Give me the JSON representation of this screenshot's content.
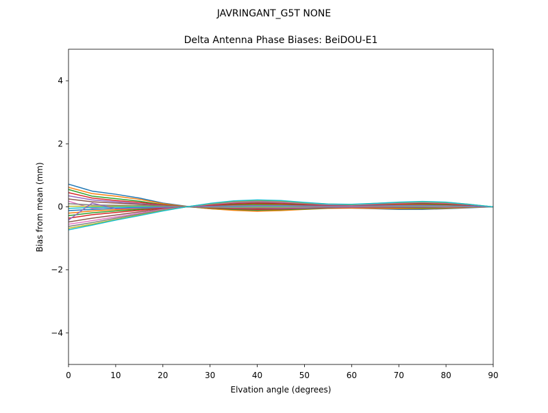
{
  "chart_data": {
    "type": "line",
    "suptitle": "JAVRINGANT_G5T  NONE",
    "title": "Delta Antenna Phase Biases: BeiDOU-E1",
    "xlabel": "Elvation angle (degrees)",
    "ylabel": "Bias from mean (mm)",
    "xlim": [
      0,
      90
    ],
    "ylim": [
      -5,
      5
    ],
    "xticks": [
      0,
      10,
      20,
      30,
      40,
      50,
      60,
      70,
      80,
      90
    ],
    "yticks": [
      -4,
      -2,
      0,
      2,
      4
    ],
    "ytick_labels": [
      "−4",
      "−2",
      "0",
      "2",
      "4"
    ],
    "grid": false,
    "legend": "none",
    "x": [
      0,
      5,
      10,
      15,
      20,
      25,
      30,
      35,
      40,
      45,
      50,
      55,
      60,
      65,
      70,
      75,
      80,
      85,
      90
    ],
    "colors": [
      "#1f77b4",
      "#ff7f0e",
      "#2ca02c",
      "#d62728",
      "#9467bd",
      "#8c564b",
      "#e377c2",
      "#7f7f7f",
      "#bcbd22",
      "#17becf"
    ],
    "series": [
      {
        "values": [
          0.72,
          0.5,
          0.4,
          0.28,
          0.12,
          0.02,
          -0.06,
          -0.1,
          -0.12,
          -0.1,
          -0.06,
          -0.04,
          -0.04,
          -0.06,
          -0.08,
          -0.08,
          -0.06,
          -0.03,
          0.0
        ]
      },
      {
        "values": [
          0.62,
          0.42,
          0.34,
          0.24,
          0.1,
          0.01,
          -0.06,
          -0.11,
          -0.14,
          -0.12,
          -0.08,
          -0.05,
          -0.04,
          -0.05,
          -0.06,
          -0.06,
          -0.05,
          -0.02,
          0.0
        ]
      },
      {
        "values": [
          0.55,
          0.34,
          0.26,
          0.18,
          0.07,
          0.0,
          -0.04,
          -0.08,
          -0.1,
          -0.09,
          -0.07,
          -0.04,
          -0.02,
          -0.02,
          -0.03,
          -0.04,
          -0.03,
          -0.01,
          0.0
        ]
      },
      {
        "values": [
          0.45,
          0.28,
          0.2,
          0.14,
          0.06,
          0.0,
          -0.03,
          -0.06,
          -0.08,
          -0.07,
          -0.05,
          -0.03,
          -0.02,
          -0.02,
          -0.02,
          -0.02,
          -0.02,
          -0.01,
          0.0
        ]
      },
      {
        "values": [
          0.35,
          0.22,
          0.16,
          0.1,
          0.04,
          0.0,
          -0.02,
          -0.04,
          -0.05,
          -0.05,
          -0.04,
          -0.02,
          -0.01,
          -0.01,
          -0.01,
          -0.01,
          -0.01,
          0.0,
          0.0
        ]
      },
      {
        "values": [
          0.25,
          0.16,
          0.12,
          0.08,
          0.03,
          0.0,
          -0.02,
          -0.03,
          -0.04,
          -0.03,
          -0.02,
          -0.01,
          0.0,
          0.0,
          0.0,
          0.0,
          0.0,
          0.0,
          0.0
        ]
      },
      {
        "values": [
          0.18,
          -0.05,
          0.02,
          0.04,
          0.02,
          0.0,
          -0.01,
          -0.02,
          -0.02,
          -0.02,
          -0.01,
          0.0,
          0.0,
          0.01,
          0.01,
          0.01,
          0.0,
          0.0,
          0.0
        ]
      },
      {
        "values": [
          0.1,
          0.06,
          0.05,
          0.04,
          0.02,
          0.0,
          -0.01,
          -0.01,
          -0.01,
          -0.01,
          0.0,
          0.0,
          0.01,
          0.01,
          0.01,
          0.01,
          0.01,
          0.0,
          0.0
        ]
      },
      {
        "values": [
          0.02,
          0.02,
          0.02,
          0.02,
          0.01,
          0.0,
          0.0,
          0.0,
          0.0,
          0.0,
          0.01,
          0.01,
          0.01,
          0.02,
          0.02,
          0.02,
          0.01,
          0.0,
          0.0
        ]
      },
      {
        "values": [
          -0.05,
          -0.02,
          -0.01,
          0.0,
          0.0,
          0.0,
          0.01,
          0.01,
          0.02,
          0.02,
          0.02,
          0.02,
          0.02,
          0.03,
          0.03,
          0.03,
          0.02,
          0.01,
          0.0
        ]
      },
      {
        "values": [
          -0.12,
          -0.08,
          -0.05,
          -0.03,
          -0.01,
          0.0,
          0.02,
          0.03,
          0.04,
          0.04,
          0.03,
          0.03,
          0.03,
          0.04,
          0.05,
          0.05,
          0.04,
          0.02,
          0.0
        ]
      },
      {
        "values": [
          -0.2,
          -0.13,
          -0.09,
          -0.06,
          -0.02,
          0.0,
          0.03,
          0.05,
          0.06,
          0.06,
          0.05,
          0.03,
          0.03,
          0.05,
          0.06,
          0.07,
          0.06,
          0.03,
          0.0
        ]
      },
      {
        "values": [
          -0.28,
          -0.19,
          -0.13,
          -0.08,
          -0.03,
          0.0,
          0.04,
          0.07,
          0.08,
          0.08,
          0.06,
          0.04,
          0.04,
          0.06,
          0.08,
          0.08,
          0.07,
          0.04,
          0.0
        ]
      },
      {
        "values": [
          -0.36,
          -0.25,
          -0.18,
          -0.11,
          -0.04,
          0.0,
          0.05,
          0.09,
          0.11,
          0.1,
          0.07,
          0.05,
          0.05,
          0.07,
          0.09,
          0.1,
          0.09,
          0.05,
          0.0
        ]
      },
      {
        "values": [
          -0.42,
          0.12,
          -0.06,
          -0.04,
          -0.02,
          0.0,
          0.02,
          0.03,
          0.04,
          0.04,
          0.03,
          0.02,
          0.02,
          0.03,
          0.04,
          0.04,
          0.03,
          0.02,
          0.0
        ]
      },
      {
        "values": [
          -0.48,
          -0.36,
          -0.26,
          -0.16,
          -0.06,
          0.0,
          0.07,
          0.12,
          0.14,
          0.13,
          0.09,
          0.06,
          0.05,
          0.08,
          0.11,
          0.12,
          0.11,
          0.06,
          0.0
        ]
      },
      {
        "values": [
          -0.55,
          -0.44,
          -0.32,
          -0.2,
          -0.08,
          0.0,
          0.08,
          0.14,
          0.17,
          0.15,
          0.11,
          0.07,
          0.06,
          0.09,
          0.12,
          0.14,
          0.12,
          0.07,
          0.0
        ]
      },
      {
        "values": [
          -0.62,
          -0.5,
          -0.36,
          -0.23,
          -0.1,
          0.0,
          0.09,
          0.16,
          0.19,
          0.17,
          0.12,
          0.08,
          0.07,
          0.1,
          0.13,
          0.15,
          0.13,
          0.07,
          0.0
        ]
      },
      {
        "values": [
          -0.68,
          -0.55,
          -0.4,
          -0.26,
          -0.12,
          0.0,
          0.1,
          0.18,
          0.21,
          0.19,
          0.13,
          0.09,
          0.07,
          0.11,
          0.14,
          0.16,
          0.14,
          0.08,
          0.0
        ]
      },
      {
        "values": [
          -0.73,
          -0.58,
          -0.42,
          -0.28,
          -0.13,
          0.0,
          0.11,
          0.19,
          0.22,
          0.2,
          0.14,
          0.09,
          0.08,
          0.11,
          0.15,
          0.17,
          0.15,
          0.08,
          0.0
        ]
      }
    ]
  }
}
